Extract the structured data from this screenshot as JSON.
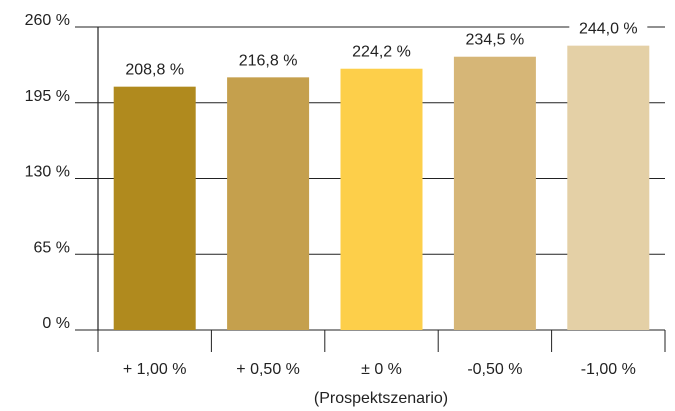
{
  "chart_data": {
    "type": "bar",
    "categories": [
      "+ 1,00 %",
      "+ 0,50 %",
      "± 0 %",
      "-0,50 %",
      "-1,00 %"
    ],
    "values": [
      208.8,
      216.8,
      224.2,
      234.5,
      244.0
    ],
    "value_labels": [
      "208,8 %",
      "216,8 %",
      "224,2 %",
      "234,5 %",
      "244,0 %"
    ],
    "bar_colors": [
      "#b08a1e",
      "#c5a04d",
      "#fdcf4a",
      "#d6b677",
      "#e4d0a6"
    ],
    "y_ticks": [
      0,
      65,
      130,
      195,
      260
    ],
    "y_tick_labels": [
      "0 %",
      "65 %",
      "130 %",
      "195 %",
      "260 %"
    ],
    "ylim": [
      0,
      260
    ],
    "grid": true,
    "xlabel": "(Prospektszenario)"
  }
}
